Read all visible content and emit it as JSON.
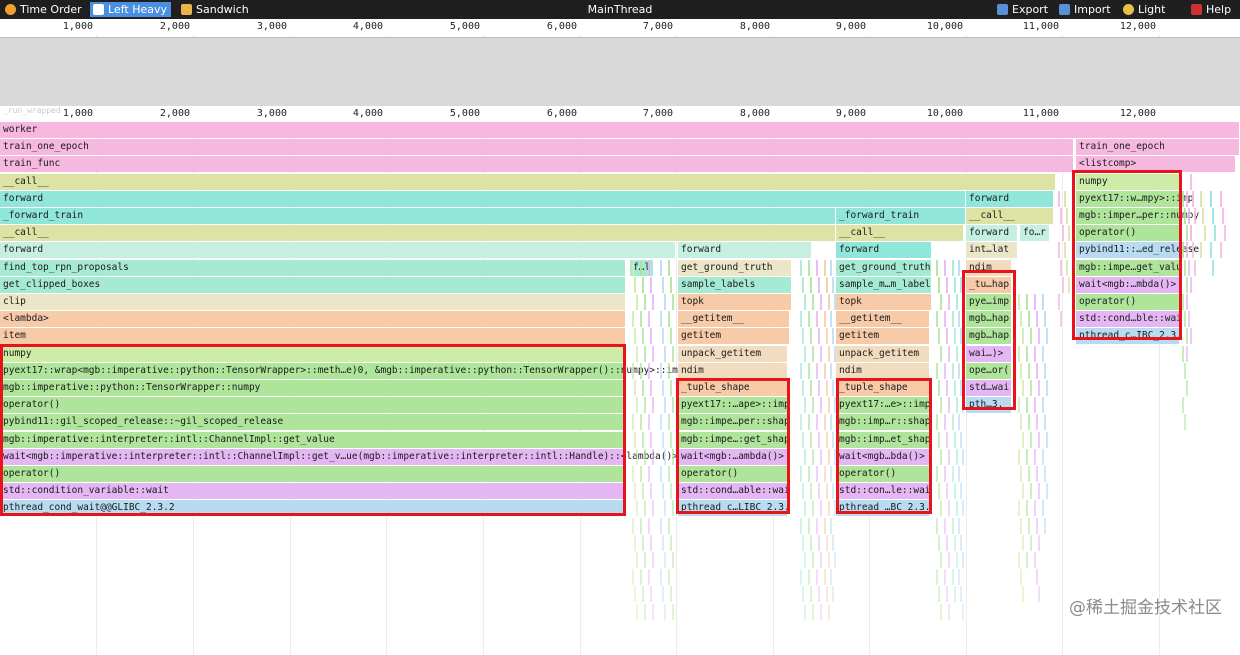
{
  "toolbar": {
    "time_order": "Time Order",
    "left_heavy": "Left Heavy",
    "sandwich": "Sandwich",
    "title": "MainThread",
    "export": "Export",
    "import": "Import",
    "light": "Light",
    "help": "Help"
  },
  "axis_ticks": [
    "1,000",
    "2,000",
    "3,000",
    "4,000",
    "5,000",
    "6,000",
    "7,000",
    "8,000",
    "9,000",
    "10,000",
    "11,000",
    "12,000"
  ],
  "root_label": "_run_wrapped",
  "colors": {
    "pink": "#f7b8e0",
    "khaki": "#dde2a5",
    "cyan": "#8fe6d9",
    "mint": "#c5efe2",
    "sea": "#a6ead4",
    "beige": "#ece6c8",
    "peach": "#f7caa8",
    "tan": "#f1dcbf",
    "lime": "#cdeca8",
    "green": "#aee59a",
    "lilac": "#e4b6f4",
    "blue": "#b8dbf2",
    "highlight": "#e8141b"
  },
  "frames": [
    {
      "label": "worker",
      "color": "pink"
    },
    {
      "label": "train_one_epoch",
      "color": "pink"
    },
    {
      "label": "train_func",
      "color": "pink"
    },
    {
      "label": "__call__",
      "color": "khaki"
    },
    {
      "label": "forward",
      "color": "cyan"
    },
    {
      "label": "_forward_train",
      "color": "cyan"
    },
    {
      "label": "__call__",
      "color": "khaki"
    },
    {
      "label": "forward",
      "color": "mint"
    },
    {
      "label": "find_top_rpn_proposals",
      "color": "sea"
    },
    {
      "label": "get_clipped_boxes",
      "color": "sea"
    },
    {
      "label": "clip",
      "color": "beige"
    },
    {
      "label": "<lambda>",
      "color": "peach"
    },
    {
      "label": "item",
      "color": "peach"
    },
    {
      "label": "numpy",
      "color": "lime"
    },
    {
      "label": "pyext17::wrap<mgb::imperative::python::TensorWrapper>::meth…e)0, &mgb::imperative::python::TensorWrapper()::numpy>::imp",
      "color": "green"
    },
    {
      "label": "mgb::imperative::python::TensorWrapper::numpy",
      "color": "green"
    },
    {
      "label": "operator()",
      "color": "green"
    },
    {
      "label": "pybind11::gil_scoped_release::~gil_scoped_release",
      "color": "green"
    },
    {
      "label": "mgb::imperative::interpreter::intl::ChannelImpl::get_value",
      "color": "green"
    },
    {
      "label": "wait<mgb::imperative::interpreter::intl::ChannelImpl::get_v…ue(mgb::imperative::interpreter::intl::Handle)::<lambda()>",
      "color": "lilac"
    },
    {
      "label": "operator()",
      "color": "green"
    },
    {
      "label": "std::condition_variable::wait",
      "color": "lilac"
    },
    {
      "label": "pthread_cond_wait@@GLIBC_2.3.2",
      "color": "blue"
    },
    {
      "label": "f…l",
      "color": "sea"
    },
    {
      "label": "forward",
      "color": "mint"
    },
    {
      "label": "get_ground_truth",
      "color": "beige"
    },
    {
      "label": "sample_labels",
      "color": "sea"
    },
    {
      "label": "topk",
      "color": "peach"
    },
    {
      "label": "__getitem__",
      "color": "peach"
    },
    {
      "label": "getitem",
      "color": "peach"
    },
    {
      "label": "unpack_getitem",
      "color": "tan"
    },
    {
      "label": "ndim",
      "color": "tan"
    },
    {
      "label": "_tuple_shape",
      "color": "peach"
    },
    {
      "label": "pyext17::…ape>::imp",
      "color": "green"
    },
    {
      "label": "mgb::impe…per::shap",
      "color": "green"
    },
    {
      "label": "mgb::impe…:get_shap",
      "color": "green"
    },
    {
      "label": "wait<mgb:…ambda()>",
      "color": "lilac"
    },
    {
      "label": "operator()",
      "color": "green"
    },
    {
      "label": "std::cond…able::wai",
      "color": "lilac"
    },
    {
      "label": "pthread_c…LIBC_2.3.",
      "color": "blue"
    },
    {
      "label": "_forward_train",
      "color": "cyan"
    },
    {
      "label": "__call__",
      "color": "khaki"
    },
    {
      "label": "forward",
      "color": "cyan"
    },
    {
      "label": "get_ground_truth",
      "color": "sea"
    },
    {
      "label": "sample_m…m_label",
      "color": "sea"
    },
    {
      "label": "topk",
      "color": "peach"
    },
    {
      "label": "__getitem__",
      "color": "peach"
    },
    {
      "label": "getitem",
      "color": "peach"
    },
    {
      "label": "unpack_getitem",
      "color": "tan"
    },
    {
      "label": "ndim",
      "color": "tan"
    },
    {
      "label": "_tuple_shape",
      "color": "peach"
    },
    {
      "label": "pyext17:…e>::imp",
      "color": "green"
    },
    {
      "label": "mgb::imp…r::shap",
      "color": "green"
    },
    {
      "label": "mgb::imp…et_shap",
      "color": "green"
    },
    {
      "label": "wait<mgb…bda()>",
      "color": "lilac"
    },
    {
      "label": "operator()",
      "color": "green"
    },
    {
      "label": "std::con…le::wai",
      "color": "lilac"
    },
    {
      "label": "pthread_…BC_2.3.",
      "color": "blue"
    },
    {
      "label": "forward",
      "color": "cyan"
    },
    {
      "label": "__call__",
      "color": "khaki"
    },
    {
      "label": "forward",
      "color": "mint"
    },
    {
      "label": "fo…r",
      "color": "mint"
    },
    {
      "label": "int…lat",
      "color": "beige"
    },
    {
      "label": "ndim",
      "color": "tan"
    },
    {
      "label": "_tu…hap",
      "color": "peach"
    },
    {
      "label": "pye…imp",
      "color": "green"
    },
    {
      "label": "mgb…hap",
      "color": "green"
    },
    {
      "label": "mgb…hap",
      "color": "green"
    },
    {
      "label": "wai…)>",
      "color": "lilac"
    },
    {
      "label": "ope…or(",
      "color": "green"
    },
    {
      "label": "std…wai",
      "color": "lilac"
    },
    {
      "label": "pth…3.",
      "color": "blue"
    },
    {
      "label": "train_one_epoch",
      "color": "pink"
    },
    {
      "label": "<listcomp>",
      "color": "pink"
    },
    {
      "label": "numpy",
      "color": "lime"
    },
    {
      "label": "pyext17::w…mpy>::imp",
      "color": "green"
    },
    {
      "label": "mgb::imper…per::numpy",
      "color": "green"
    },
    {
      "label": "operator()",
      "color": "green"
    },
    {
      "label": "pybind11::…ed_release",
      "color": "blue"
    },
    {
      "label": "mgb::impe…get_valu",
      "color": "green"
    },
    {
      "label": "wait<mgb:…mbda()>",
      "color": "lilac"
    },
    {
      "label": "operator()",
      "color": "green"
    },
    {
      "label": "std::cond…ble::wai",
      "color": "lilac"
    },
    {
      "label": "pthread_c…IBC_2.3.",
      "color": "blue"
    }
  ],
  "watermark": "@稀土掘金技术社区"
}
